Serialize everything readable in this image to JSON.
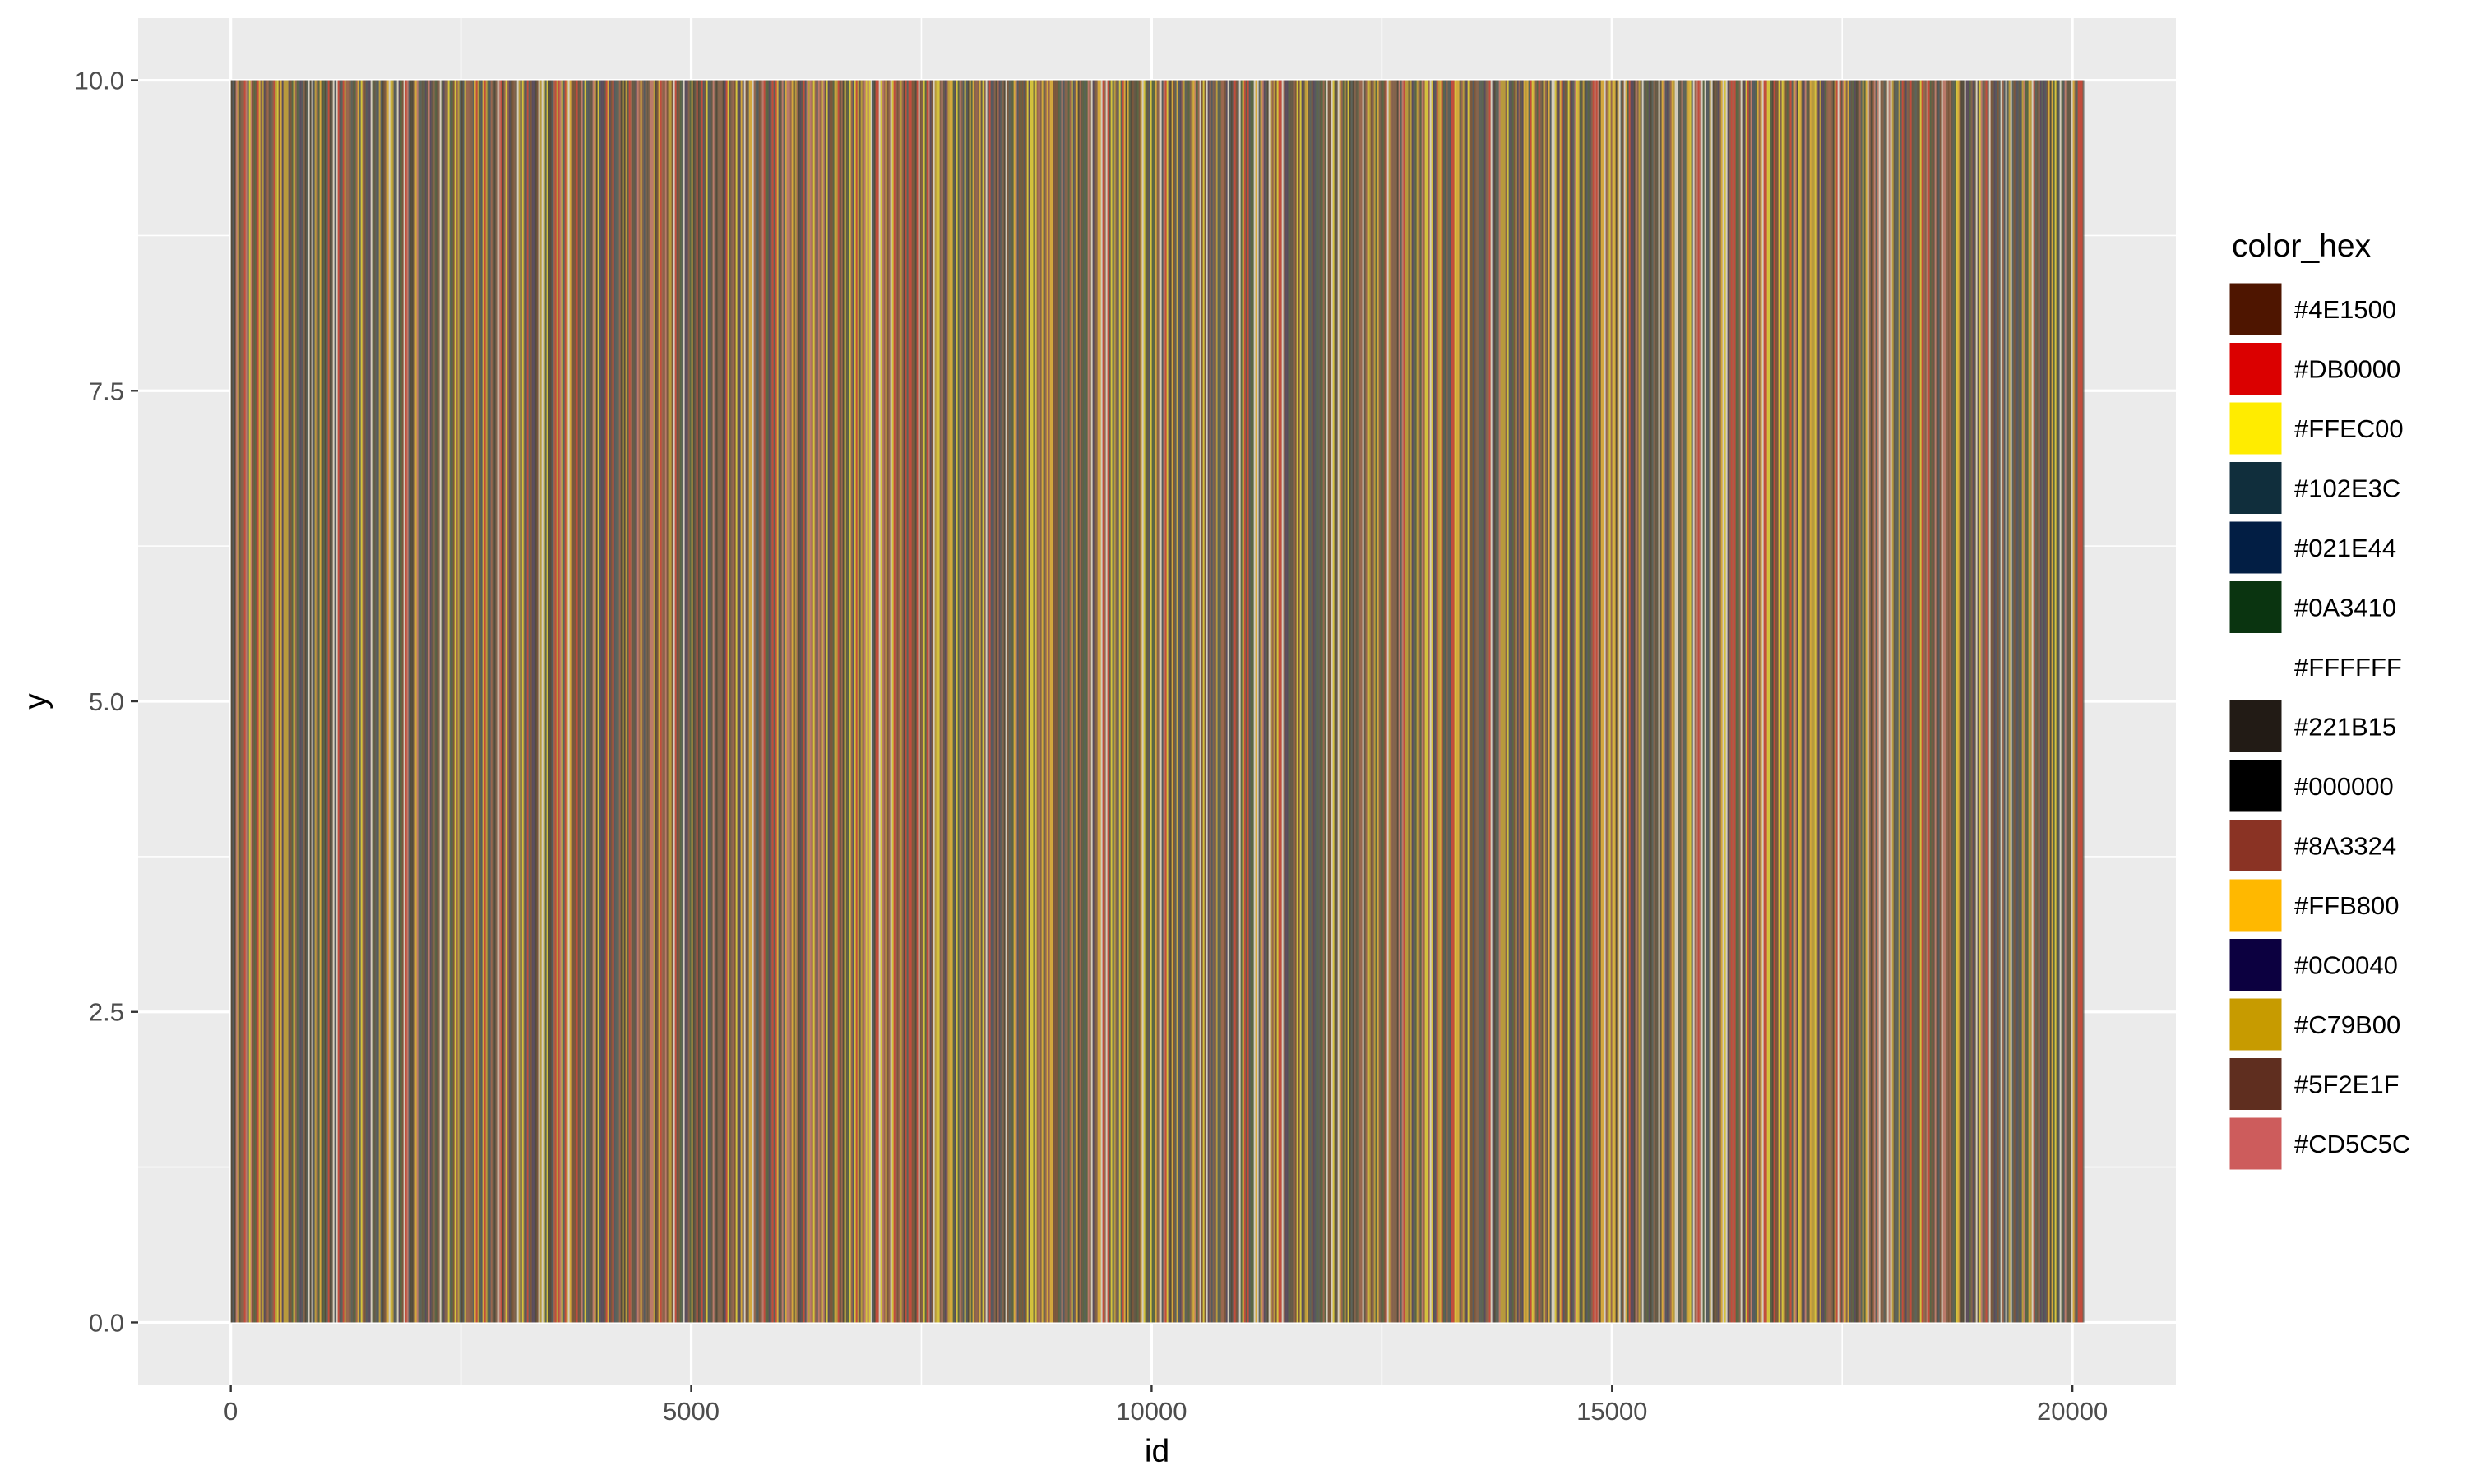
{
  "chart_data": {
    "type": "bar",
    "title": "",
    "xlabel": "id",
    "ylabel": "y",
    "x_range": [
      0,
      20118
    ],
    "xlim": [
      -1006,
      21124
    ],
    "ylim": [
      -0.5,
      10.5
    ],
    "x_ticks": [
      0,
      5000,
      10000,
      15000,
      20000
    ],
    "y_ticks": [
      0,
      2.5,
      5,
      7.5,
      10
    ],
    "x_tick_labels": [
      "0",
      "5000",
      "10000",
      "15000",
      "20000"
    ],
    "y_tick_labels": [
      "0.0",
      "2.5",
      "5.0",
      "7.5",
      "10.0"
    ],
    "bar_value": 10,
    "bar_alpha": 0.5,
    "grid": true,
    "legend": {
      "title": "color_hex",
      "placement": "right",
      "entries": [
        "#4E1500",
        "#DB0000",
        "#FFEC00",
        "#102E3C",
        "#021E44",
        "#0A3410",
        "#FFFFFF",
        "#221B15",
        "#000000",
        "#8A3324",
        "#FFB800",
        "#0C0040",
        "#C79B00",
        "#5F2E1F",
        "#CD5C5C"
      ]
    }
  },
  "colors": {
    "panel_background": "#EBEBEB",
    "grid_major": "#FFFFFF",
    "tick_text": "#4D4D4D"
  }
}
